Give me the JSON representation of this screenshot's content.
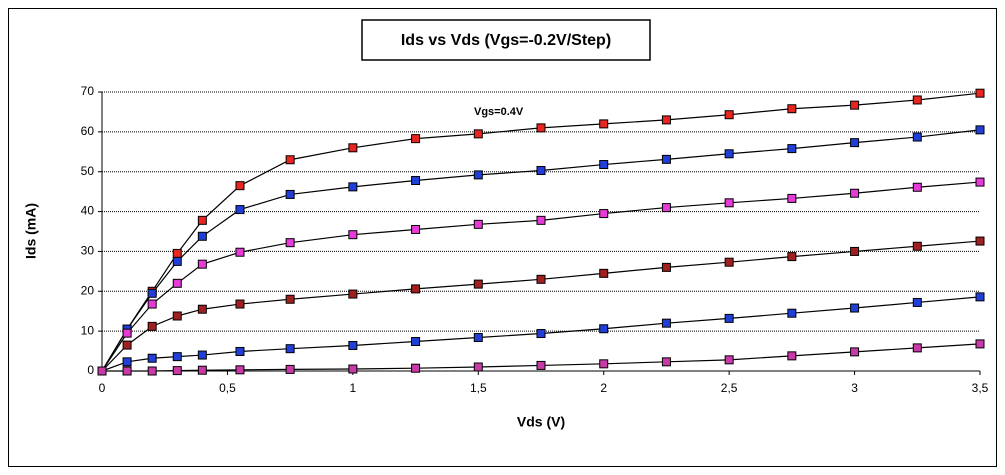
{
  "chart_data": {
    "type": "line",
    "title": "Ids vs Vds (Vgs=-0.2V/Step)",
    "x_label": "Vds (V)",
    "y_label": "Ids (mA)",
    "annotations": [
      {
        "text": "Vgs=0.4V"
      }
    ],
    "x": [
      0,
      0.1,
      0.2,
      0.3,
      0.4,
      0.55,
      0.75,
      1,
      1.25,
      1.5,
      1.75,
      2,
      2.25,
      2.5,
      2.75,
      3,
      3.25,
      3.5
    ],
    "series": [
      {
        "color": "#e8251f",
        "values": [
          0,
          10.5,
          20,
          29.5,
          37.8,
          46.5,
          53,
          56,
          58.3,
          59.5,
          61,
          62,
          63,
          64.3,
          65.8,
          66.7,
          68,
          69.7
        ]
      },
      {
        "color": "#1f3fd8",
        "values": [
          0,
          10.5,
          19.5,
          27.5,
          33.8,
          40.5,
          44.3,
          46.2,
          47.8,
          49.2,
          50.3,
          51.8,
          53.1,
          54.5,
          55.8,
          57.3,
          58.7,
          60.5
        ]
      },
      {
        "color": "#e83ad8",
        "values": [
          0,
          9.5,
          16.8,
          22,
          26.8,
          29.8,
          32.2,
          34.2,
          35.5,
          36.8,
          37.8,
          39.5,
          41,
          42.2,
          43.3,
          44.6,
          46.1,
          47.4
        ]
      },
      {
        "color": "#a02020",
        "values": [
          0,
          6.5,
          11.2,
          13.8,
          15.5,
          16.8,
          18,
          19.3,
          20.6,
          21.8,
          23,
          24.5,
          26,
          27.3,
          28.7,
          30,
          31.3,
          32.6
        ]
      },
      {
        "color": "#1f3fd8",
        "values": [
          0,
          2.3,
          3.2,
          3.6,
          4.0,
          4.9,
          5.6,
          6.4,
          7.4,
          8.4,
          9.4,
          10.6,
          12,
          13.2,
          14.5,
          15.8,
          17.2,
          18.6
        ]
      },
      {
        "color": "#c83aa8",
        "values": [
          0,
          0,
          0,
          0.1,
          0.2,
          0.3,
          0.4,
          0.5,
          0.7,
          1.0,
          1.4,
          1.8,
          2.3,
          2.8,
          3.8,
          4.8,
          5.8,
          6.8
        ]
      }
    ],
    "xlim": [
      0,
      3.5
    ],
    "xticks": [
      0,
      {
        "value": 0.5,
        "label": "0,5"
      },
      1,
      {
        "value": 1.5,
        "label": "1,5"
      },
      2,
      {
        "value": 2.5,
        "label": "2,5"
      },
      3,
      {
        "value": 3.5,
        "label": "3,5"
      }
    ],
    "ylim": [
      0,
      70
    ],
    "yticks": [
      0,
      10,
      20,
      30,
      40,
      50,
      60,
      70
    ],
    "grid": true
  }
}
